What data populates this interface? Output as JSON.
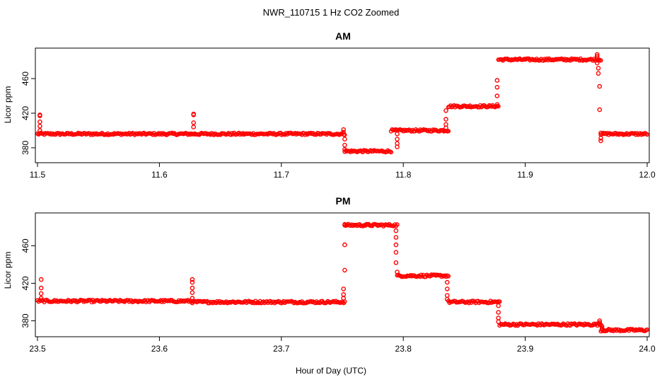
{
  "figure_title": "NWR_110715  1 Hz CO2 Zoomed",
  "xlabel": "Hour of Day (UTC)",
  "colors": {
    "points": "#ff0000",
    "axes": "#000000",
    "background": "#ffffff"
  },
  "chart_data": [
    {
      "type": "scatter",
      "title": "AM",
      "xlabel": "",
      "ylabel": "Licor ppm",
      "xlim": [
        11.5,
        12.0
      ],
      "ylim": [
        366,
        492
      ],
      "x_ticks": [
        "11.5",
        "11.6",
        "11.7",
        "11.8",
        "11.9",
        "12.0"
      ],
      "y_ticks": [
        "380",
        "420",
        "460"
      ],
      "grid": false,
      "levels": [
        {
          "x": [
            11.5,
            11.629
          ],
          "y": 396
        },
        {
          "x": [
            11.629,
            11.752
          ],
          "y": 396
        },
        {
          "x": [
            11.752,
            11.79
          ],
          "y": 376
        },
        {
          "x": [
            11.79,
            11.837
          ],
          "y": 400
        },
        {
          "x": [
            11.837,
            11.878
          ],
          "y": 428
        },
        {
          "x": [
            11.878,
            11.962
          ],
          "y": 482
        },
        {
          "x": [
            11.962,
            12.0
          ],
          "y": 396
        }
      ],
      "spikes": [
        {
          "x": 11.502,
          "y": [
            400,
            405,
            410,
            417,
            418
          ]
        },
        {
          "x": 11.628,
          "y": [
            404,
            409,
            418,
            419
          ]
        },
        {
          "x": 11.751,
          "y": [
            398,
            401
          ]
        },
        {
          "x": 11.752,
          "y": [
            390,
            383,
            378
          ]
        },
        {
          "x": 11.795,
          "y": [
            381,
            385,
            390,
            396
          ]
        },
        {
          "x": 11.835,
          "y": [
            403,
            407,
            413,
            423
          ]
        },
        {
          "x": 11.877,
          "y": [
            430,
            440,
            450,
            458
          ]
        },
        {
          "x": 11.959,
          "y": [
            486,
            488,
            484,
            478
          ]
        },
        {
          "x": 11.96,
          "y": [
            472,
            466
          ]
        },
        {
          "x": 11.961,
          "y": [
            451,
            424
          ]
        },
        {
          "x": 11.962,
          "y": [
            397,
            391,
            388
          ]
        }
      ]
    },
    {
      "type": "scatter",
      "title": "PM",
      "xlabel": "Hour of Day (UTC)",
      "ylabel": "Licor ppm",
      "xlim": [
        23.5,
        24.0
      ],
      "ylim": [
        366,
        492
      ],
      "x_ticks": [
        "23.5",
        "23.6",
        "23.7",
        "23.8",
        "23.9",
        "24.0"
      ],
      "y_ticks": [
        "380",
        "420",
        "460"
      ],
      "grid": false,
      "levels": [
        {
          "x": [
            23.5,
            23.627
          ],
          "y": 401
        },
        {
          "x": [
            23.627,
            23.752
          ],
          "y": 400
        },
        {
          "x": [
            23.752,
            23.795
          ],
          "y": 482
        },
        {
          "x": [
            23.795,
            23.837
          ],
          "y": 428
        },
        {
          "x": [
            23.837,
            23.879
          ],
          "y": 400
        },
        {
          "x": [
            23.879,
            23.962
          ],
          "y": 376
        },
        {
          "x": [
            23.962,
            24.0
          ],
          "y": 370
        }
      ],
      "spikes": [
        {
          "x": 23.503,
          "y": [
            404,
            409,
            415,
            424
          ]
        },
        {
          "x": 23.627,
          "y": [
            404,
            410,
            415,
            421,
            424
          ]
        },
        {
          "x": 23.751,
          "y": [
            404,
            408,
            414
          ]
        },
        {
          "x": 23.752,
          "y": [
            434,
            461,
            482
          ]
        },
        {
          "x": 23.794,
          "y": [
            476,
            469,
            461,
            453,
            442
          ]
        },
        {
          "x": 23.795,
          "y": [
            432
          ]
        },
        {
          "x": 23.836,
          "y": [
            421,
            414,
            407,
            403
          ]
        },
        {
          "x": 23.878,
          "y": [
            396,
            389,
            383,
            379
          ]
        },
        {
          "x": 23.961,
          "y": [
            380,
            378,
            376
          ]
        },
        {
          "x": 23.963,
          "y": [
            374,
            372,
            371
          ]
        }
      ]
    }
  ]
}
